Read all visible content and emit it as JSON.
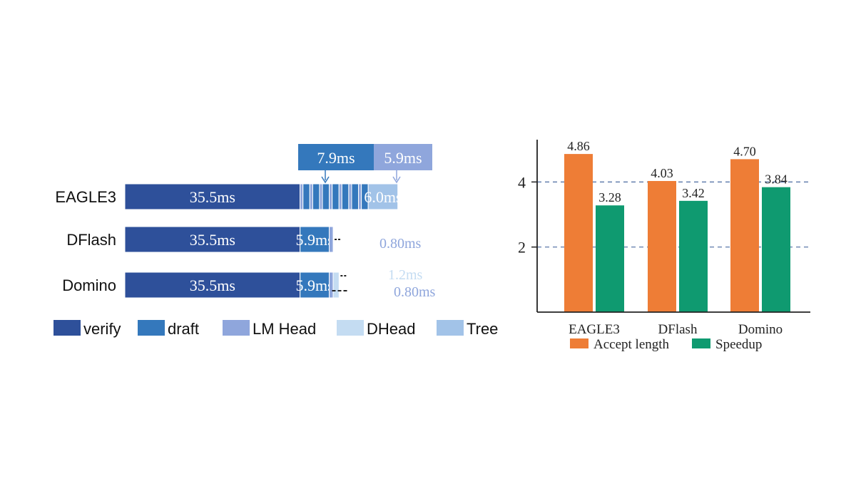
{
  "colors": {
    "verify": "#2e509a",
    "draft": "#3478bc",
    "lm_head": "#8fa6dc",
    "dhead": "#c4dcf2",
    "tree": "#a2c3e8",
    "accept": "#ee7d36",
    "speedup": "#0f9a70",
    "grid": "#4a6aa0"
  },
  "chart_data": [
    {
      "type": "bar",
      "orientation": "horizontal",
      "stacked": true,
      "unit": "ms",
      "categories": [
        "EAGLE3",
        "DFlash",
        "Domino"
      ],
      "rows": [
        {
          "name": "EAGLE3",
          "segments": [
            {
              "component": "verify",
              "value": 35.5,
              "label": "35.5ms"
            },
            {
              "component": "draft+lm_head",
              "value": 13.8,
              "label": "",
              "steps": 7
            },
            {
              "component": "tree",
              "value": 6.0,
              "label": "6.0ms"
            }
          ],
          "callouts": [
            {
              "component": "draft",
              "label": "7.9ms"
            },
            {
              "component": "lm_head",
              "label": "5.9ms"
            }
          ]
        },
        {
          "name": "DFlash",
          "segments": [
            {
              "component": "verify",
              "value": 35.5,
              "label": "35.5ms"
            },
            {
              "component": "draft",
              "value": 5.9,
              "label": "5.9ms"
            },
            {
              "component": "lm_head",
              "value": 0.8,
              "label": "0.80ms"
            }
          ]
        },
        {
          "name": "Domino",
          "segments": [
            {
              "component": "verify",
              "value": 35.5,
              "label": "35.5ms"
            },
            {
              "component": "draft",
              "value": 5.9,
              "label": "5.9ms"
            },
            {
              "component": "lm_head",
              "value": 0.8,
              "label": "0.80ms"
            },
            {
              "component": "dhead",
              "value": 1.2,
              "label": "1.2ms"
            }
          ]
        }
      ],
      "legend": [
        {
          "key": "verify",
          "label": "verify"
        },
        {
          "key": "draft",
          "label": "draft"
        },
        {
          "key": "lm_head",
          "label": "LM Head"
        },
        {
          "key": "dhead",
          "label": "DHead"
        },
        {
          "key": "tree",
          "label": "Tree"
        }
      ],
      "legend_position": "bottom"
    },
    {
      "type": "bar",
      "categories": [
        "EAGLE3",
        "DFlash",
        "Domino"
      ],
      "series": [
        {
          "name": "Accept length",
          "key": "accept",
          "values": [
            4.86,
            4.03,
            4.7
          ],
          "labels": [
            "4.86",
            "4.03",
            "4.70"
          ]
        },
        {
          "name": "Speedup",
          "key": "speedup",
          "values": [
            3.28,
            3.42,
            3.84
          ],
          "labels": [
            "3.28",
            "3.42",
            "3.84"
          ]
        }
      ],
      "ylim": [
        0,
        5.3
      ],
      "yticks": [
        {
          "value": 2,
          "label": "2"
        },
        {
          "value": 4,
          "label": "4"
        }
      ],
      "grid": "horizontal dashed at ticks",
      "legend_position": "bottom"
    }
  ]
}
